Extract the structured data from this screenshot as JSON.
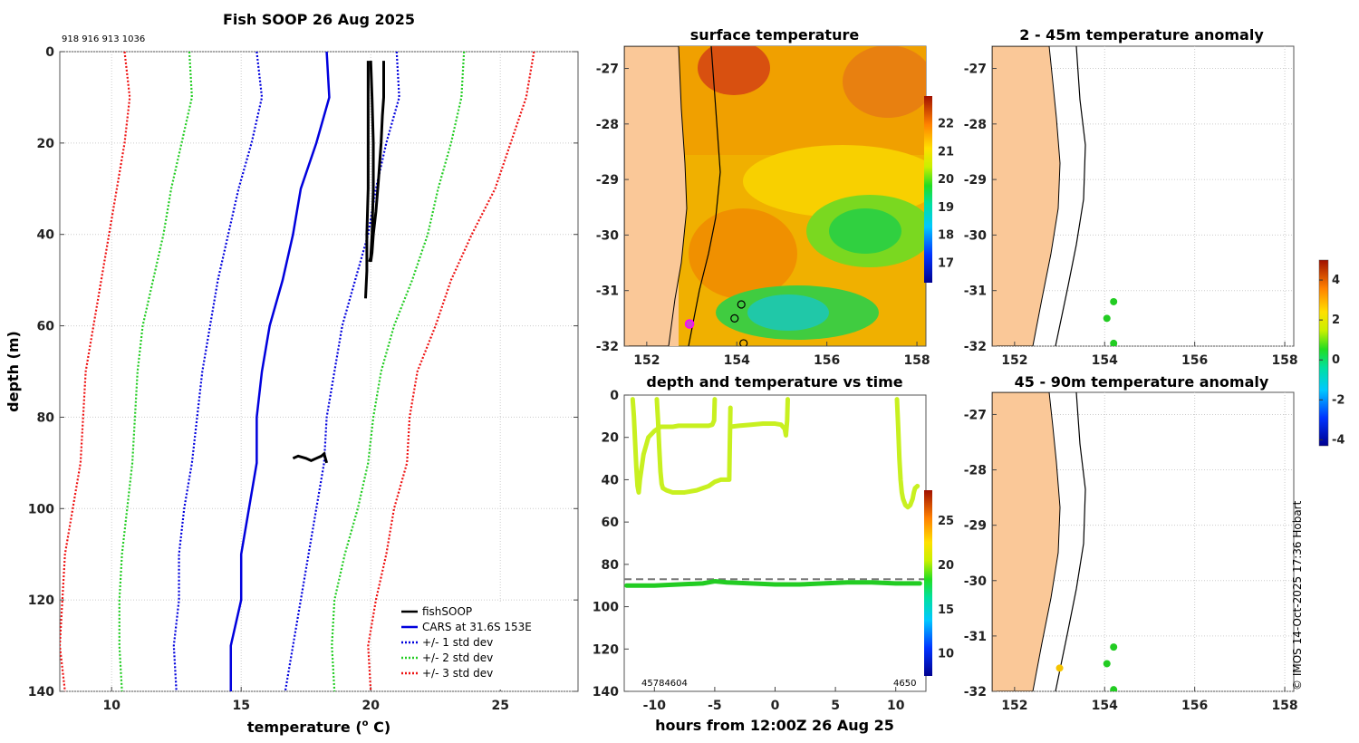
{
  "figure": {
    "main_title": "Fish SOOP 26 Aug 2025",
    "ids": "918 916 913 1036",
    "copyright": "© IMOS 14-Oct-2025 17:36 Hobart"
  },
  "colors": {
    "fishsoop": "#000000",
    "cars": "#0000dd",
    "std1": "#0000dd",
    "std2": "#22cc22",
    "std3": "#ee1111",
    "land": "#fac898",
    "points_green": "#22cc22",
    "points_yellow": "#f5c400",
    "depth_trace": "#c8f020",
    "bottom_trace": "#22cc22",
    "dash_line": "#777777"
  },
  "chart_data": [
    {
      "id": "profile",
      "type": "line",
      "title": "Fish SOOP 26 Aug 2025",
      "xlabel": "temperature (",
      "xlabel_sup": "o",
      "xlabel_tail": " C)",
      "ylabel": "depth (m)",
      "xlim": [
        8,
        28
      ],
      "ylim": [
        0,
        140
      ],
      "xticks": [
        10,
        15,
        20,
        25
      ],
      "yticks": [
        0,
        20,
        40,
        60,
        80,
        100,
        120,
        140
      ],
      "legend": [
        "fishSOOP",
        "CARS at 31.6S 153E",
        "+/- 1 std dev",
        "+/- 2 std dev",
        "+/- 3 std dev"
      ],
      "depth": [
        0,
        10,
        20,
        30,
        40,
        50,
        60,
        70,
        80,
        90,
        100,
        110,
        120,
        130,
        140
      ],
      "series": [
        {
          "name": "CARS at 31.6S 153E",
          "style": "cars",
          "values": [
            18.3,
            18.4,
            17.9,
            17.3,
            17.0,
            16.6,
            16.1,
            15.8,
            15.6,
            15.6,
            15.3,
            15.0,
            15.0,
            14.6,
            14.6
          ]
        },
        {
          "name": "-1 std",
          "style": "std1",
          "values": [
            15.6,
            15.8,
            15.4,
            14.9,
            14.5,
            14.1,
            13.8,
            13.5,
            13.3,
            13.1,
            12.8,
            12.6,
            12.6,
            12.4,
            12.5
          ]
        },
        {
          "name": "+1 std",
          "style": "std1",
          "values": [
            21.0,
            21.1,
            20.6,
            20.2,
            19.9,
            19.4,
            18.9,
            18.6,
            18.3,
            18.2,
            17.9,
            17.6,
            17.3,
            17.0,
            16.7
          ]
        },
        {
          "name": "-2 std",
          "style": "std2",
          "values": [
            13.0,
            13.1,
            12.7,
            12.3,
            12.0,
            11.6,
            11.2,
            11.0,
            10.9,
            10.8,
            10.6,
            10.4,
            10.3,
            10.3,
            10.4
          ]
        },
        {
          "name": "+2 std",
          "style": "std2",
          "values": [
            23.6,
            23.5,
            23.1,
            22.6,
            22.2,
            21.6,
            20.9,
            20.4,
            20.1,
            19.9,
            19.5,
            19.0,
            18.6,
            18.5,
            18.6
          ]
        },
        {
          "name": "-3 std",
          "style": "std3",
          "values": [
            10.5,
            10.7,
            10.5,
            10.2,
            9.9,
            9.6,
            9.3,
            9.0,
            8.9,
            8.8,
            8.5,
            8.2,
            8.1,
            8.0,
            8.2
          ]
        },
        {
          "name": "+3 std",
          "style": "std3",
          "values": [
            26.3,
            26.0,
            25.4,
            24.8,
            23.9,
            23.1,
            22.5,
            21.8,
            21.5,
            21.4,
            20.9,
            20.6,
            20.2,
            19.9,
            20.0
          ]
        }
      ],
      "fishsoop_casts": [
        {
          "temp": [
            19.9,
            19.9,
            19.9,
            19.9,
            19.85,
            19.85,
            19.8
          ],
          "depth": [
            2,
            10,
            20,
            30,
            40,
            48,
            54
          ]
        },
        {
          "temp": [
            20.0,
            20.05,
            20.1,
            20.1,
            20.05,
            20.0,
            19.95
          ],
          "depth": [
            2,
            10,
            20,
            30,
            40,
            45,
            46
          ]
        },
        {
          "temp": [
            20.5,
            20.5,
            20.45,
            20.4,
            20.3,
            20.2,
            20.1,
            20.05,
            20.0
          ],
          "depth": [
            2,
            10,
            14,
            20,
            28,
            35,
            40,
            44,
            46
          ]
        },
        {
          "temp": [
            17.0,
            17.2,
            17.5,
            17.7,
            17.9,
            18.1,
            18.2,
            18.3
          ],
          "depth": [
            89,
            88.5,
            89,
            89.5,
            89,
            88.5,
            88,
            90
          ]
        }
      ]
    },
    {
      "id": "sst",
      "type": "heatmap",
      "title": "surface temperature",
      "xlim": [
        151.5,
        158.2
      ],
      "ylim": [
        -32,
        -26.6
      ],
      "xticks": [
        152,
        154,
        156,
        158
      ],
      "yticks": [
        -27,
        -28,
        -29,
        -30,
        -31,
        -32
      ],
      "colorbar_ticks": [
        17,
        18,
        19,
        20,
        21,
        22
      ],
      "colorbar_range": [
        16.3,
        23.0
      ],
      "points": [
        [
          154.1,
          -31.25
        ],
        [
          153.95,
          -31.5
        ],
        [
          154.15,
          -31.95
        ]
      ],
      "highlight_point": [
        152.95,
        -31.6
      ]
    },
    {
      "id": "anom_shallow",
      "type": "scatter",
      "title": "2 - 45m temperature anomaly",
      "xlim": [
        151.5,
        158.2
      ],
      "ylim": [
        -32,
        -26.6
      ],
      "xticks": [
        152,
        154,
        156,
        158
      ],
      "yticks": [
        -27,
        -28,
        -29,
        -30,
        -31,
        -32
      ],
      "points": [
        {
          "lon": 154.2,
          "lat": -31.2,
          "anom": 0.3
        },
        {
          "lon": 154.05,
          "lat": -31.5,
          "anom": 0.2
        },
        {
          "lon": 154.2,
          "lat": -31.95,
          "anom": 0.3
        }
      ]
    },
    {
      "id": "anom_deep",
      "type": "scatter",
      "title": "45 - 90m temperature anomaly",
      "xlim": [
        151.5,
        158.2
      ],
      "ylim": [
        -32,
        -26.6
      ],
      "xticks": [
        152,
        154,
        156,
        158
      ],
      "yticks": [
        -27,
        -28,
        -29,
        -30,
        -31,
        -32
      ],
      "points": [
        {
          "lon": 154.2,
          "lat": -31.2,
          "anom": 0.3
        },
        {
          "lon": 154.05,
          "lat": -31.5,
          "anom": 0.2
        },
        {
          "lon": 154.2,
          "lat": -31.97,
          "anom": 0.3
        },
        {
          "lon": 153.0,
          "lat": -31.58,
          "anom": 2.8
        }
      ],
      "colorbar_ticks": [
        4,
        2,
        0,
        -2,
        -4
      ],
      "colorbar_range": [
        -4.3,
        5.0
      ]
    },
    {
      "id": "timeseries",
      "type": "scatter",
      "title": "depth and temperature vs time",
      "xlabel": "hours from 12:00Z 26 Aug 25",
      "xlim": [
        -12.5,
        12.5
      ],
      "ylim": [
        0,
        140
      ],
      "xticks": [
        -10,
        -5,
        0,
        5,
        10
      ],
      "yticks": [
        0,
        20,
        40,
        60,
        80,
        100,
        120,
        140
      ],
      "dashed_depth": 87,
      "annot_left": "45784604",
      "annot_right": "4650",
      "colorbar_ticks": [
        10,
        15,
        20,
        25
      ],
      "colorbar_range": [
        7.5,
        28.5
      ],
      "traces": [
        {
          "time": [
            -11.8,
            -11.7,
            -11.6,
            -11.5,
            -11.4,
            -11.3,
            -11.2,
            -10.9,
            -10.5,
            -10.0,
            -9.5,
            -9.0,
            -8.5,
            -8.0,
            -7.5,
            -7.0,
            -6.5,
            -6.0,
            -5.5,
            -5.2,
            -5.05,
            -5.0
          ],
          "depth": [
            2,
            10,
            22,
            34,
            43,
            46,
            40,
            28,
            20,
            17,
            15,
            15,
            15,
            14.5,
            14.5,
            14.5,
            14.5,
            14.5,
            14.5,
            14,
            12,
            2
          ]
        },
        {
          "time": [
            -9.8,
            -9.7,
            -9.6,
            -9.5,
            -9.4,
            -9.3,
            -9.0,
            -8.5,
            -8.0,
            -7.5,
            -7.0,
            -6.5,
            -6.0,
            -5.5,
            -5.0,
            -4.5,
            -4.0,
            -3.8,
            -3.7
          ],
          "depth": [
            2,
            12,
            25,
            36,
            42,
            44,
            45,
            46,
            46,
            46,
            45.5,
            45,
            44,
            43,
            41,
            40,
            40,
            40,
            6
          ]
        },
        {
          "time": [
            -3.7,
            -3.0,
            -2.0,
            -1.0,
            0.0,
            0.5,
            0.8,
            0.9,
            1.0,
            1.05
          ],
          "depth": [
            15,
            14.5,
            14,
            13.5,
            13.5,
            14,
            16,
            19,
            12,
            2
          ]
        },
        {
          "time": [
            10.1,
            10.2,
            10.3,
            10.4,
            10.5,
            10.6,
            10.8,
            11.0,
            11.2,
            11.4,
            11.5,
            11.6,
            11.8
          ],
          "depth": [
            2,
            15,
            30,
            40,
            46,
            49,
            52,
            53,
            52,
            49,
            46,
            44,
            43
          ]
        },
        {
          "time": [
            -12.3,
            -10,
            -8,
            -6,
            -5,
            -4,
            -2,
            0,
            2,
            4,
            6,
            8,
            10,
            12.0
          ],
          "depth": [
            90,
            90,
            89.5,
            89,
            88,
            88.5,
            89,
            89.5,
            89.5,
            89,
            88.5,
            88.5,
            89,
            89
          ],
          "bottom": true
        }
      ]
    }
  ]
}
